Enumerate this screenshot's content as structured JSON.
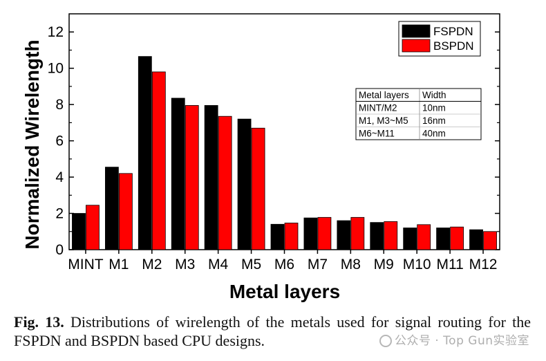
{
  "chart_data": {
    "type": "bar",
    "title": "",
    "xlabel": "Metal layers",
    "ylabel": "Normalized Wirelength",
    "ylim": [
      0,
      13
    ],
    "yticks": [
      0,
      2,
      4,
      6,
      8,
      10,
      12
    ],
    "categories": [
      "MINT",
      "M1",
      "M2",
      "M3",
      "M4",
      "M5",
      "M6",
      "M7",
      "M8",
      "M9",
      "M10",
      "M11",
      "M12"
    ],
    "series": [
      {
        "name": "FSPDN",
        "color": "#000000",
        "values": [
          2.0,
          4.55,
          10.65,
          8.35,
          7.95,
          7.2,
          1.4,
          1.75,
          1.6,
          1.5,
          1.2,
          1.2,
          1.1
        ]
      },
      {
        "name": "BSPDN",
        "color": "#ff0000",
        "values": [
          2.45,
          4.2,
          9.8,
          7.95,
          7.35,
          6.7,
          1.47,
          1.78,
          1.78,
          1.55,
          1.38,
          1.25,
          1.0
        ]
      }
    ],
    "legend": "top-right",
    "grid": false,
    "inset_table": {
      "headers": [
        "Metal layers",
        "Width"
      ],
      "rows": [
        [
          "MINT/M2",
          "10nm"
        ],
        [
          "M1, M3~M5",
          "16nm"
        ],
        [
          "M6~M11",
          "40nm"
        ]
      ]
    }
  },
  "caption": {
    "label": "Fig. 13.",
    "text": " Distributions of wirelength of the metals used for signal routing for the FSPDN and BSPDN based CPU designs."
  },
  "watermark": {
    "text": "公众号 · Top Gun实验室"
  }
}
